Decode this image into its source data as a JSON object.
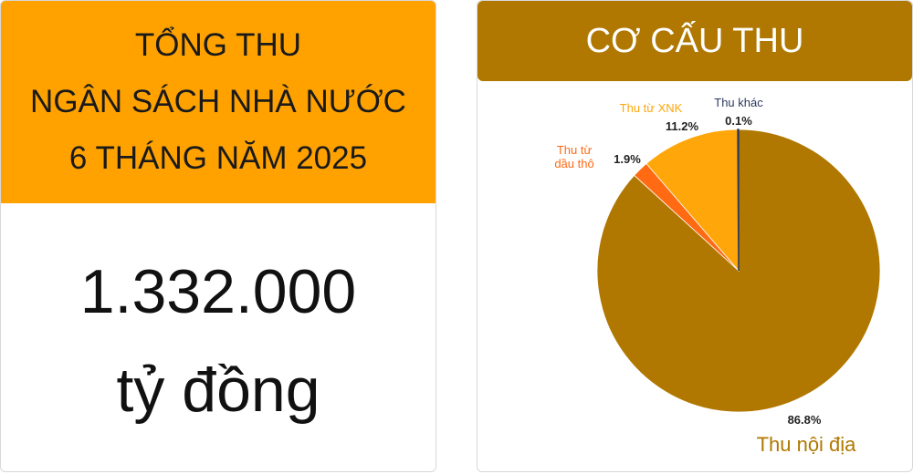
{
  "summary": {
    "title_lines": [
      "TỔNG THU",
      "NGÂN SÁCH NHÀ NƯỚC",
      "6 THÁNG NĂM 2025"
    ],
    "amount": "1.332.000",
    "unit": "tỷ đồng"
  },
  "chart_data": {
    "type": "pie",
    "title": "CƠ CẤU THU",
    "categories": [
      "Thu nội địa",
      "Thu từ dầu thô",
      "Thu từ XNK",
      "Thu khác"
    ],
    "values": [
      86.8,
      1.9,
      11.2,
      0.1
    ],
    "value_labels": [
      "86.8%",
      "1.9%",
      "11.2%",
      "0.1%"
    ],
    "colors": [
      "#b07800",
      "#ff6a13",
      "#ffa60a",
      "#2b3a5e"
    ]
  }
}
